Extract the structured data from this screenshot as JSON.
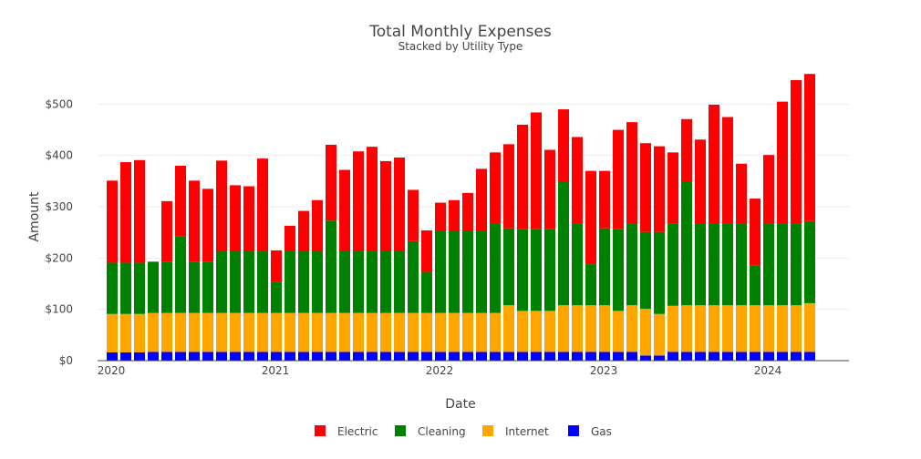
{
  "chart_data": {
    "type": "bar",
    "stacked": true,
    "title": "Total Monthly Expenses",
    "subtitle": "Stacked by Utility Type",
    "xlabel": "Date",
    "ylabel": "Amount",
    "ylim": [
      0,
      570
    ],
    "y_ticks": [
      {
        "value": 0,
        "label": "$0"
      },
      {
        "value": 100,
        "label": "$100"
      },
      {
        "value": 200,
        "label": "$200"
      },
      {
        "value": 300,
        "label": "$300"
      },
      {
        "value": 400,
        "label": "$400"
      },
      {
        "value": 500,
        "label": "$500"
      }
    ],
    "x_ticks": [
      {
        "index": 0,
        "label": "2020"
      },
      {
        "index": 12,
        "label": "2021"
      },
      {
        "index": 24,
        "label": "2022"
      },
      {
        "index": 36,
        "label": "2023"
      },
      {
        "index": 48,
        "label": "2024"
      }
    ],
    "categories": [
      "2020-01",
      "2020-02",
      "2020-03",
      "2020-04",
      "2020-05",
      "2020-06",
      "2020-07",
      "2020-08",
      "2020-09",
      "2020-10",
      "2020-11",
      "2020-12",
      "2021-01",
      "2021-02",
      "2021-03",
      "2021-04",
      "2021-05",
      "2021-06",
      "2021-07",
      "2021-08",
      "2021-09",
      "2021-10",
      "2021-11",
      "2021-12",
      "2022-01",
      "2022-02",
      "2022-03",
      "2022-04",
      "2022-05",
      "2022-06",
      "2022-07",
      "2022-08",
      "2022-09",
      "2022-10",
      "2022-11",
      "2022-12",
      "2023-01",
      "2023-02",
      "2023-03",
      "2023-04",
      "2023-05",
      "2023-06",
      "2023-07",
      "2023-08",
      "2023-09",
      "2023-10",
      "2023-11",
      "2023-12",
      "2024-01",
      "2024-02",
      "2024-03",
      "2024-04"
    ],
    "legend": [
      "Electric",
      "Cleaning",
      "Internet",
      "Gas"
    ],
    "series": [
      {
        "name": "Gas",
        "color": "#0000ff",
        "values": [
          16,
          16,
          16,
          17,
          17,
          17,
          17,
          17,
          17,
          17,
          17,
          17,
          17,
          17,
          17,
          17,
          17,
          17,
          17,
          17,
          17,
          17,
          17,
          17,
          17,
          17,
          17,
          17,
          17,
          17,
          17,
          17,
          17,
          17,
          17,
          17,
          17,
          17,
          17,
          10,
          10,
          17,
          17,
          17,
          17,
          17,
          17,
          17,
          17,
          17,
          17,
          17
        ]
      },
      {
        "name": "Internet",
        "color": "#ffa500",
        "values": [
          75,
          75,
          75,
          76,
          76,
          76,
          76,
          76,
          76,
          76,
          76,
          76,
          76,
          76,
          76,
          76,
          76,
          76,
          76,
          76,
          76,
          76,
          76,
          76,
          76,
          76,
          76,
          76,
          76,
          91,
          80,
          80,
          80,
          91,
          91,
          91,
          91,
          80,
          91,
          91,
          81,
          90,
          91,
          91,
          91,
          91,
          91,
          91,
          91,
          91,
          91,
          95
        ]
      },
      {
        "name": "Cleaning",
        "color": "#008000",
        "values": [
          100,
          100,
          100,
          100,
          100,
          150,
          100,
          100,
          120,
          120,
          120,
          120,
          60,
          120,
          120,
          120,
          180,
          120,
          120,
          120,
          120,
          120,
          140,
          80,
          160,
          160,
          160,
          160,
          175,
          150,
          160,
          160,
          160,
          240,
          160,
          80,
          150,
          160,
          160,
          150,
          160,
          160,
          240,
          160,
          160,
          160,
          160,
          78,
          160,
          160,
          160,
          160
        ]
      },
      {
        "name": "Electric",
        "color": "#ff0000",
        "values": [
          160,
          196,
          200,
          0,
          118,
          137,
          158,
          142,
          177,
          129,
          127,
          181,
          62,
          50,
          79,
          100,
          148,
          159,
          195,
          204,
          176,
          183,
          100,
          81,
          55,
          60,
          74,
          121,
          138,
          164,
          203,
          227,
          154,
          142,
          168,
          182,
          112,
          193,
          197,
          173,
          167,
          139,
          123,
          163,
          231,
          207,
          116,
          130,
          133,
          237,
          279,
          287
        ]
      }
    ]
  }
}
